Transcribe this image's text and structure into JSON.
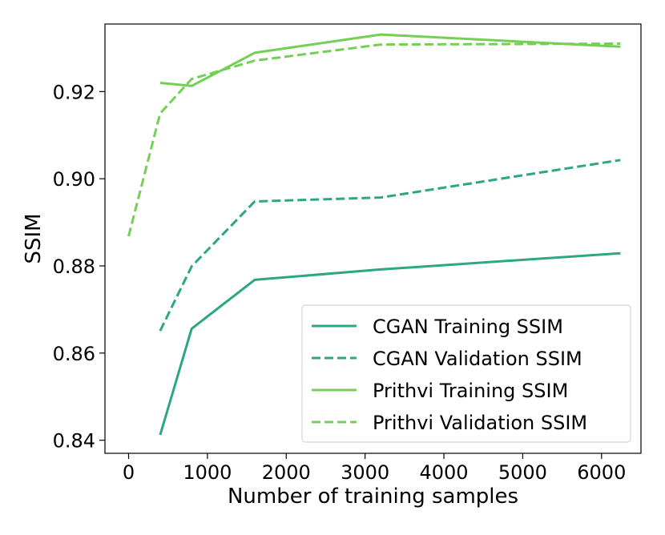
{
  "chart_data": {
    "type": "line",
    "title": "",
    "xlabel": "Number of training samples",
    "ylabel": "SSIM",
    "xlim": [
      -300,
      6500
    ],
    "ylim": [
      0.837,
      0.9355
    ],
    "xticks": [
      0,
      1000,
      2000,
      3000,
      4000,
      5000,
      6000
    ],
    "xtick_labels": [
      "0",
      "1000",
      "2000",
      "3000",
      "4000",
      "5000",
      "6000"
    ],
    "yticks": [
      0.84,
      0.86,
      0.88,
      0.9,
      0.92
    ],
    "ytick_labels": [
      "0.84",
      "0.86",
      "0.88",
      "0.90",
      "0.92"
    ],
    "grid": false,
    "legend_position": "lower-right",
    "series": [
      {
        "name": "CGAN Training SSIM",
        "color": "#2ba784",
        "style": "solid",
        "x": [
          400,
          800,
          1600,
          3200,
          6240
        ],
        "y": [
          0.8412,
          0.8656,
          0.8768,
          0.8792,
          0.8829
        ]
      },
      {
        "name": "CGAN Validation SSIM",
        "color": "#2ba784",
        "style": "dashed",
        "x": [
          400,
          800,
          1600,
          3200,
          6240
        ],
        "y": [
          0.8651,
          0.8799,
          0.8948,
          0.8957,
          0.9043
        ]
      },
      {
        "name": "Prithvi Training SSIM",
        "color": "#73d055",
        "style": "solid",
        "x": [
          400,
          800,
          1600,
          3200,
          6240
        ],
        "y": [
          0.922,
          0.9213,
          0.9289,
          0.9331,
          0.9303
        ]
      },
      {
        "name": "Prithvi Validation SSIM",
        "color": "#73d055",
        "style": "dashed",
        "x": [
          0,
          400,
          800,
          1600,
          3200,
          6240
        ],
        "y": [
          0.8868,
          0.915,
          0.9229,
          0.9271,
          0.9308,
          0.931
        ]
      }
    ]
  }
}
